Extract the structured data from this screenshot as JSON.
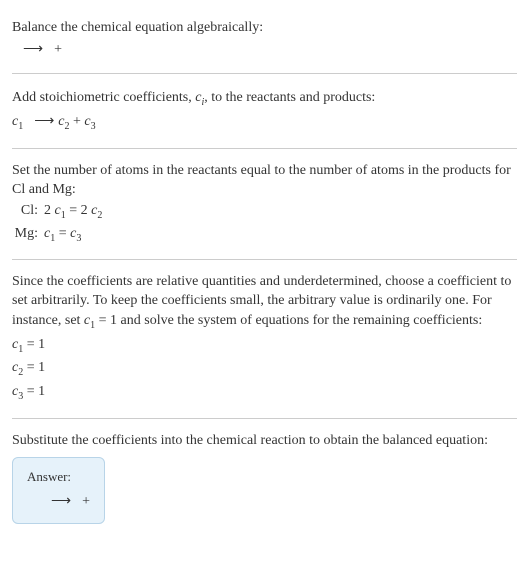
{
  "section1": {
    "line1": "Balance the chemical equation algebraically:",
    "arrow": "⟶",
    "plus": "+"
  },
  "section2": {
    "line1_prefix": "Add stoichiometric coefficients, ",
    "line1_ci": "c",
    "line1_ci_sub": "i",
    "line1_suffix": ", to the reactants and products:",
    "c1": "c",
    "c1_sub": "1",
    "arrow": "⟶",
    "c2": "c",
    "c2_sub": "2",
    "plus": " + ",
    "c3": "c",
    "c3_sub": "3"
  },
  "section3": {
    "line1": "Set the number of atoms in the reactants equal to the number of atoms in the products for Cl and Mg:",
    "cl_label": "Cl:",
    "cl_lhs_2": "2 ",
    "cl_c1": "c",
    "cl_c1_sub": "1",
    "cl_eq": " = ",
    "cl_rhs_2": "2 ",
    "cl_c2": "c",
    "cl_c2_sub": "2",
    "mg_label": "Mg:",
    "mg_c1": "c",
    "mg_c1_sub": "1",
    "mg_eq": " = ",
    "mg_c3": "c",
    "mg_c3_sub": "3"
  },
  "section4": {
    "line1_a": "Since the coefficients are relative quantities and underdetermined, choose a coefficient to set arbitrarily. To keep the coefficients small, the arbitrary value is ordinarily one. For instance, set ",
    "line1_c1": "c",
    "line1_c1_sub": "1",
    "line1_b": " = 1 and solve the system of equations for the remaining coefficients:",
    "eq1_c": "c",
    "eq1_sub": "1",
    "eq1_val": " = 1",
    "eq2_c": "c",
    "eq2_sub": "2",
    "eq2_val": " = 1",
    "eq3_c": "c",
    "eq3_sub": "3",
    "eq3_val": " = 1"
  },
  "section5": {
    "line1": "Substitute the coefficients into the chemical reaction to obtain the balanced equation:",
    "answer_label": "Answer:",
    "arrow": "⟶",
    "plus": " + "
  },
  "colors": {
    "text": "#333333",
    "divider": "#cccccc",
    "answer_bg": "#e6f2fa",
    "answer_border": "#b8d4e8"
  }
}
